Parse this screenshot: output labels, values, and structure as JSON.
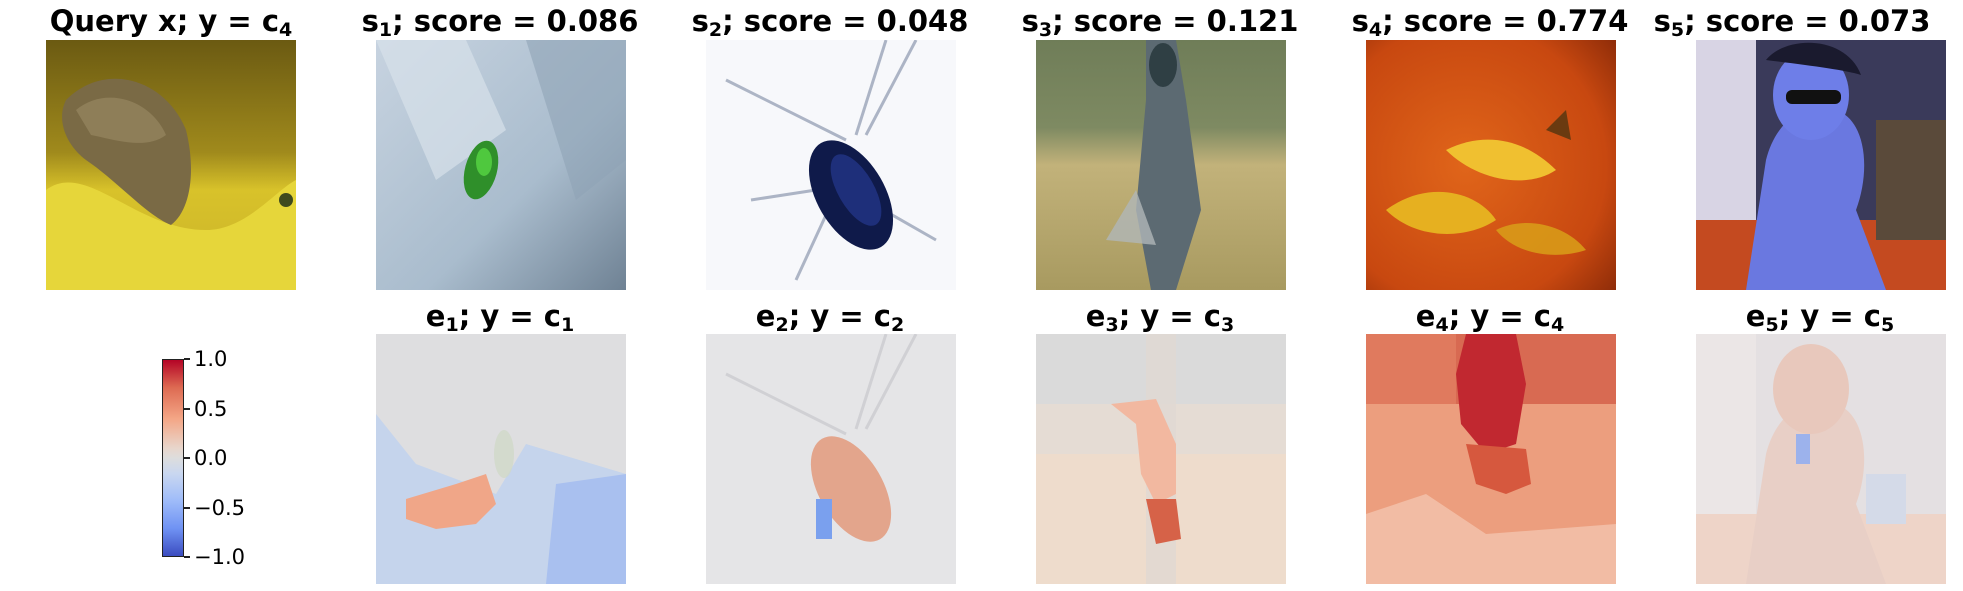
{
  "query": {
    "title": {
      "text": "Query x; y = c",
      "sub": "4"
    }
  },
  "top_row": [
    {
      "title": {
        "text": "s",
        "sub": "1",
        "rest": "; score = 0.086"
      },
      "image": "green-insect-on-fabric"
    },
    {
      "title": {
        "text": "s",
        "sub": "2",
        "rest": "; score = 0.048"
      },
      "image": "cockroach-on-white"
    },
    {
      "title": {
        "text": "s",
        "sub": "3",
        "rest": "; score = 0.121"
      },
      "image": "blurry-figure-on-field"
    },
    {
      "title": {
        "text": "s",
        "sub": "4",
        "rest": "; score = 0.774"
      },
      "image": "yellow-fish-on-orange"
    },
    {
      "title": {
        "text": "s",
        "sub": "5",
        "rest": "; score = 0.073"
      },
      "image": "person-with-sunglasses"
    }
  ],
  "bottom_row": [
    {
      "title": {
        "text": "e",
        "sub": "1",
        "rest": "; y = c",
        "sub2": "1"
      },
      "image": "explanation-heatmap-1"
    },
    {
      "title": {
        "text": "e",
        "sub": "2",
        "rest": "; y = c",
        "sub2": "2"
      },
      "image": "explanation-heatmap-2"
    },
    {
      "title": {
        "text": "e",
        "sub": "3",
        "rest": "; y = c",
        "sub2": "3"
      },
      "image": "explanation-heatmap-3"
    },
    {
      "title": {
        "text": "e",
        "sub": "4",
        "rest": "; y = c",
        "sub2": "4"
      },
      "image": "explanation-heatmap-4"
    },
    {
      "title": {
        "text": "e",
        "sub": "5",
        "rest": "; y = c",
        "sub2": "5"
      },
      "image": "explanation-heatmap-5"
    }
  ],
  "colorbar": {
    "ticks": [
      "1.0",
      "0.5",
      "0.0",
      "−0.5",
      "−1.0"
    ],
    "colors": {
      "max": "#b40426",
      "mid": "#dddddd",
      "min": "#3b4cc0"
    }
  }
}
